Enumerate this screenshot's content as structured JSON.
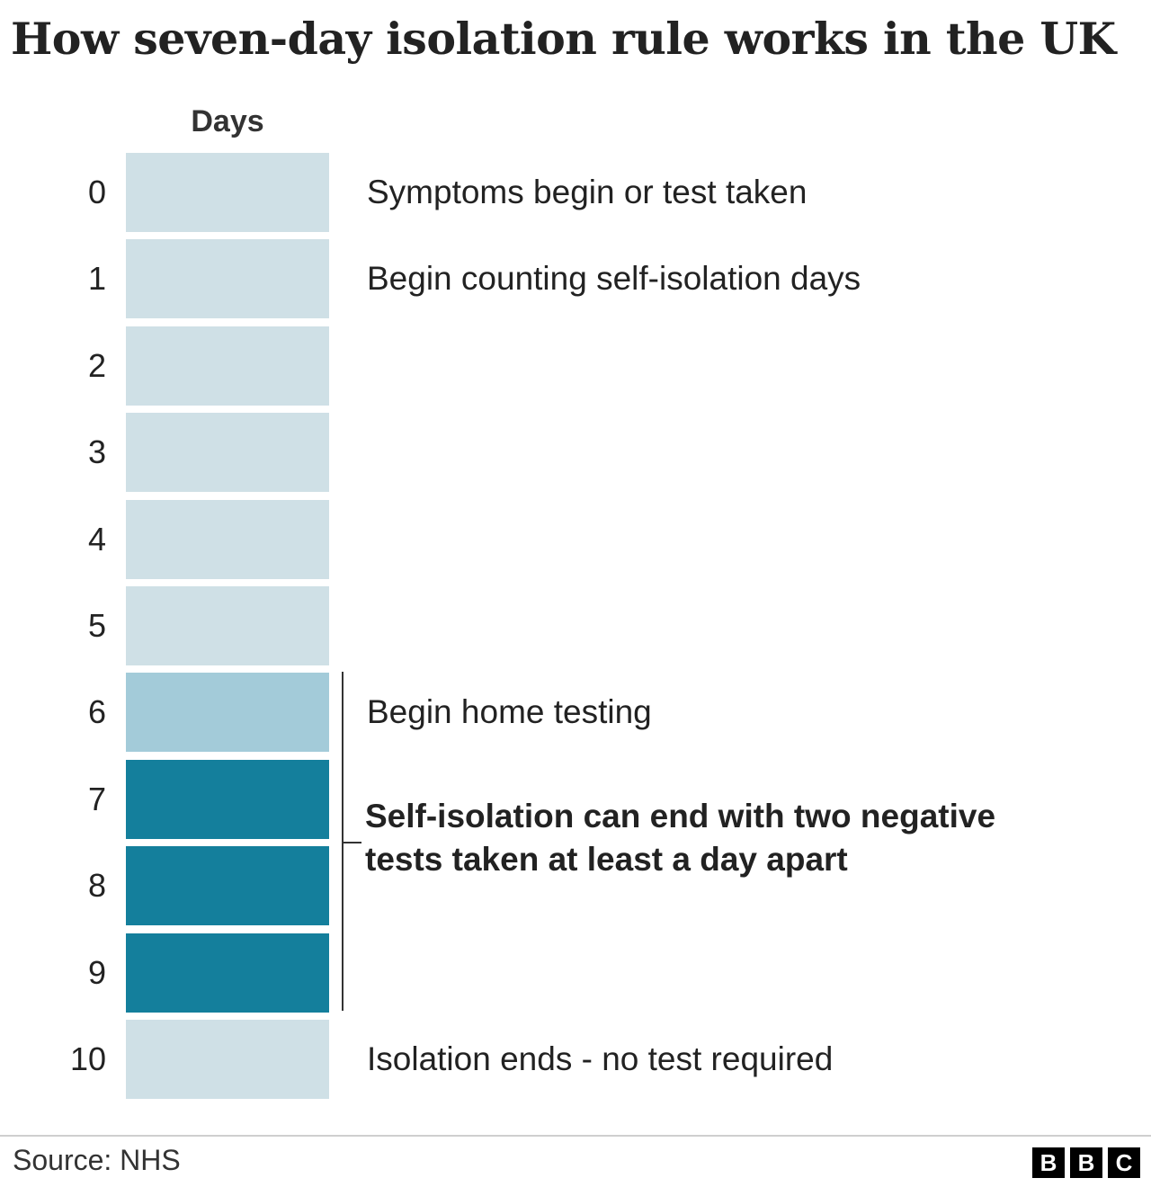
{
  "title": "How seven-day isolation rule works in the UK",
  "days_header": "Days",
  "colors": {
    "light": "#cfe0e6",
    "medium": "#a3cbd9",
    "dark": "#147f9c"
  },
  "days": [
    {
      "day": "0",
      "shade": "light",
      "note": "Symptoms begin or test taken"
    },
    {
      "day": "1",
      "shade": "light",
      "note": "Begin counting self-isolation days"
    },
    {
      "day": "2",
      "shade": "light",
      "note": ""
    },
    {
      "day": "3",
      "shade": "light",
      "note": ""
    },
    {
      "day": "4",
      "shade": "light",
      "note": ""
    },
    {
      "day": "5",
      "shade": "light",
      "note": ""
    },
    {
      "day": "6",
      "shade": "medium",
      "note": "Begin home testing"
    },
    {
      "day": "7",
      "shade": "dark",
      "note": ""
    },
    {
      "day": "8",
      "shade": "dark",
      "note": ""
    },
    {
      "day": "9",
      "shade": "dark",
      "note": ""
    },
    {
      "day": "10",
      "shade": "light",
      "note": "Isolation ends - no test required"
    }
  ],
  "bracket_note_line1": "Self-isolation can end with two negative",
  "bracket_note_line2": "tests taken at least a day apart",
  "source": "Source: NHS",
  "logo_letters": [
    "B",
    "B",
    "C"
  ]
}
